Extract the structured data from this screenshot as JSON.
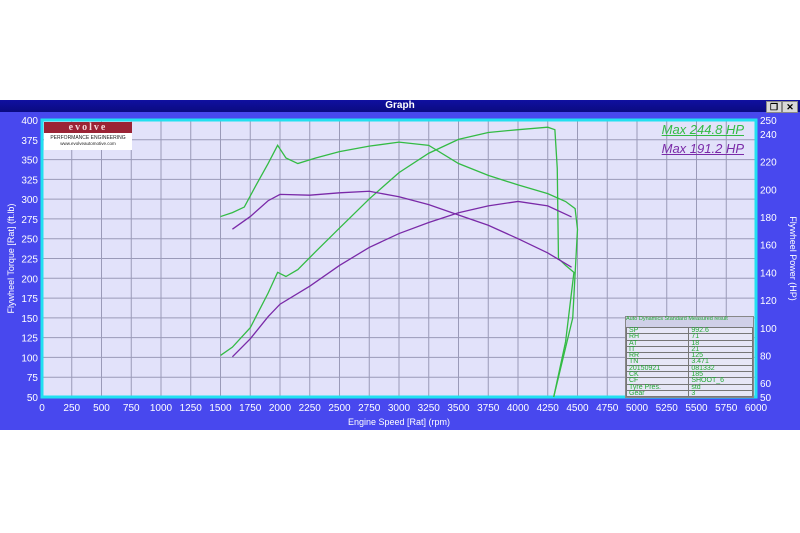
{
  "window": {
    "title": "Graph",
    "restore_icon": "restore-icon",
    "close_icon": "close-icon"
  },
  "logo": {
    "brand": "evolve",
    "tagline": "PERFORMANCE ENGINEERING",
    "url": "www.evolveautomotive.com"
  },
  "legend": {
    "max_green": "Max 244.8 HP",
    "max_purple": "Max 191.2 HP"
  },
  "info_box": {
    "header": "Auto Dynamics Standard Measured result",
    "rows": [
      [
        "SP",
        "992.6"
      ],
      [
        "RH",
        "71"
      ],
      [
        "AT",
        "18"
      ],
      [
        "IT",
        "21"
      ],
      [
        "RR",
        "125"
      ],
      [
        "TN",
        "3.471"
      ],
      [
        "20150921",
        "081332"
      ],
      [
        "CK",
        "185"
      ],
      [
        "CF",
        "SHOOT_6"
      ],
      [
        "Tyre Pres.",
        "std"
      ],
      [
        "Gear",
        "3"
      ]
    ]
  },
  "chart_data": {
    "type": "line",
    "xlabel": "Engine Speed [Rat] (rpm)",
    "ylabel": "Flywheel Torque [Rat] (ft.lb)",
    "y2label": "Flywheel Power (HP)",
    "xlim": [
      0,
      6000
    ],
    "ylim": [
      50,
      400
    ],
    "y2lim": [
      50,
      250
    ],
    "xticks": [
      0,
      250,
      500,
      750,
      1000,
      1250,
      1500,
      1750,
      2000,
      2250,
      2500,
      2750,
      3000,
      3250,
      3500,
      3750,
      4000,
      4250,
      4500,
      4750,
      5000,
      5250,
      5500,
      5750,
      6000
    ],
    "yticks": [
      50,
      75,
      100,
      125,
      150,
      175,
      200,
      225,
      250,
      275,
      300,
      325,
      350,
      375,
      400
    ],
    "y2ticks": [
      50,
      60,
      80,
      100,
      120,
      140,
      160,
      180,
      200,
      220,
      240,
      250
    ],
    "grid": true,
    "colors": {
      "green": "#33bb44",
      "purple": "#7a2aa8",
      "plot_bg": "#e2e2fa",
      "border": "#22e0f0",
      "window": "#4848ee"
    },
    "series": [
      {
        "color": "green",
        "axis": "left",
        "points": [
          [
            1500,
            278
          ],
          [
            1600,
            283
          ],
          [
            1700,
            290
          ],
          [
            1800,
            318
          ],
          [
            1900,
            345
          ],
          [
            1980,
            368
          ],
          [
            2050,
            352
          ],
          [
            2150,
            345
          ],
          [
            2300,
            352
          ],
          [
            2500,
            360
          ],
          [
            2750,
            367
          ],
          [
            3000,
            372
          ],
          [
            3250,
            368
          ],
          [
            3500,
            345
          ],
          [
            3750,
            330
          ],
          [
            4000,
            318
          ],
          [
            4250,
            307
          ],
          [
            4400,
            297
          ],
          [
            4480,
            288
          ],
          [
            4500,
            262
          ],
          [
            4460,
            150
          ],
          [
            4380,
            100
          ],
          [
            4300,
            50
          ]
        ]
      },
      {
        "color": "green",
        "axis": "right",
        "points": [
          [
            1500,
            80
          ],
          [
            1600,
            86
          ],
          [
            1750,
            100
          ],
          [
            1900,
            125
          ],
          [
            1980,
            140
          ],
          [
            2050,
            137
          ],
          [
            2150,
            142
          ],
          [
            2300,
            155
          ],
          [
            2500,
            172
          ],
          [
            2750,
            193
          ],
          [
            3000,
            212
          ],
          [
            3250,
            226
          ],
          [
            3500,
            236
          ],
          [
            3750,
            241
          ],
          [
            4000,
            243
          ],
          [
            4250,
            244.8
          ],
          [
            4310,
            243
          ],
          [
            4330,
            215
          ],
          [
            4340,
            150
          ],
          [
            4400,
            145
          ],
          [
            4470,
            140
          ],
          [
            4400,
            90
          ],
          [
            4300,
            50
          ]
        ]
      },
      {
        "color": "purple",
        "axis": "left",
        "points": [
          [
            1600,
            262
          ],
          [
            1750,
            278
          ],
          [
            1900,
            298
          ],
          [
            2000,
            306
          ],
          [
            2250,
            305
          ],
          [
            2500,
            308
          ],
          [
            2750,
            310
          ],
          [
            3000,
            303
          ],
          [
            3250,
            293
          ],
          [
            3500,
            280
          ],
          [
            3750,
            267
          ],
          [
            4000,
            250
          ],
          [
            4250,
            232
          ],
          [
            4450,
            214
          ]
        ]
      },
      {
        "color": "purple",
        "axis": "right",
        "points": [
          [
            1600,
            79
          ],
          [
            1750,
            92
          ],
          [
            1900,
            108
          ],
          [
            2000,
            117
          ],
          [
            2250,
            130
          ],
          [
            2500,
            145
          ],
          [
            2750,
            158
          ],
          [
            3000,
            168
          ],
          [
            3250,
            176
          ],
          [
            3500,
            183
          ],
          [
            3750,
            188
          ],
          [
            4000,
            191.2
          ],
          [
            4250,
            188
          ],
          [
            4450,
            180
          ]
        ]
      }
    ]
  }
}
